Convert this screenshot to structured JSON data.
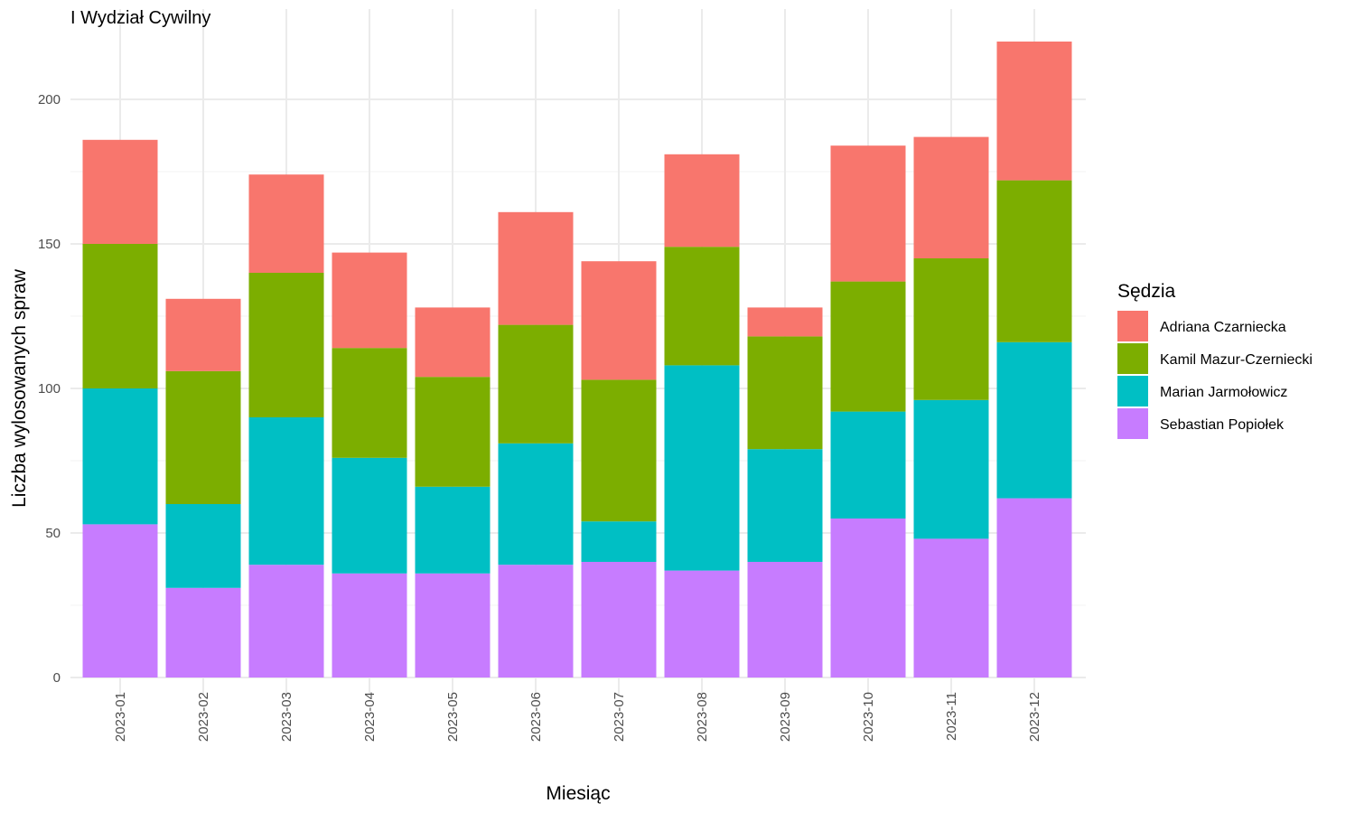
{
  "chart_data": {
    "type": "bar",
    "stacked": true,
    "title": "I Wydział Cywilny",
    "xlabel": "Miesiąc",
    "ylabel": "Liczba wylosowanych spraw",
    "ylim": [
      0,
      220
    ],
    "yticks": [
      0,
      50,
      100,
      150,
      200
    ],
    "grid": true,
    "legend_position": "right",
    "legend_title": "Sędzia",
    "categories": [
      "2023-01",
      "2023-02",
      "2023-03",
      "2023-04",
      "2023-05",
      "2023-06",
      "2023-07",
      "2023-08",
      "2023-09",
      "2023-10",
      "2023-11",
      "2023-12"
    ],
    "series": [
      {
        "name": "Adriana Czarniecka",
        "color": "#F8766D",
        "values": [
          36,
          25,
          34,
          33,
          24,
          39,
          41,
          32,
          10,
          47,
          42,
          48
        ]
      },
      {
        "name": "Kamil Mazur-Czerniecki",
        "color": "#7CAE00",
        "values": [
          50,
          46,
          50,
          38,
          38,
          41,
          49,
          41,
          39,
          45,
          49,
          56
        ]
      },
      {
        "name": "Marian Jarmołowicz",
        "color": "#00BFC4",
        "values": [
          47,
          29,
          51,
          40,
          30,
          42,
          14,
          71,
          39,
          37,
          48,
          54
        ]
      },
      {
        "name": "Sebastian Popiołek",
        "color": "#C77CFF",
        "values": [
          53,
          31,
          39,
          36,
          36,
          39,
          40,
          37,
          40,
          55,
          48,
          62
        ]
      }
    ]
  }
}
